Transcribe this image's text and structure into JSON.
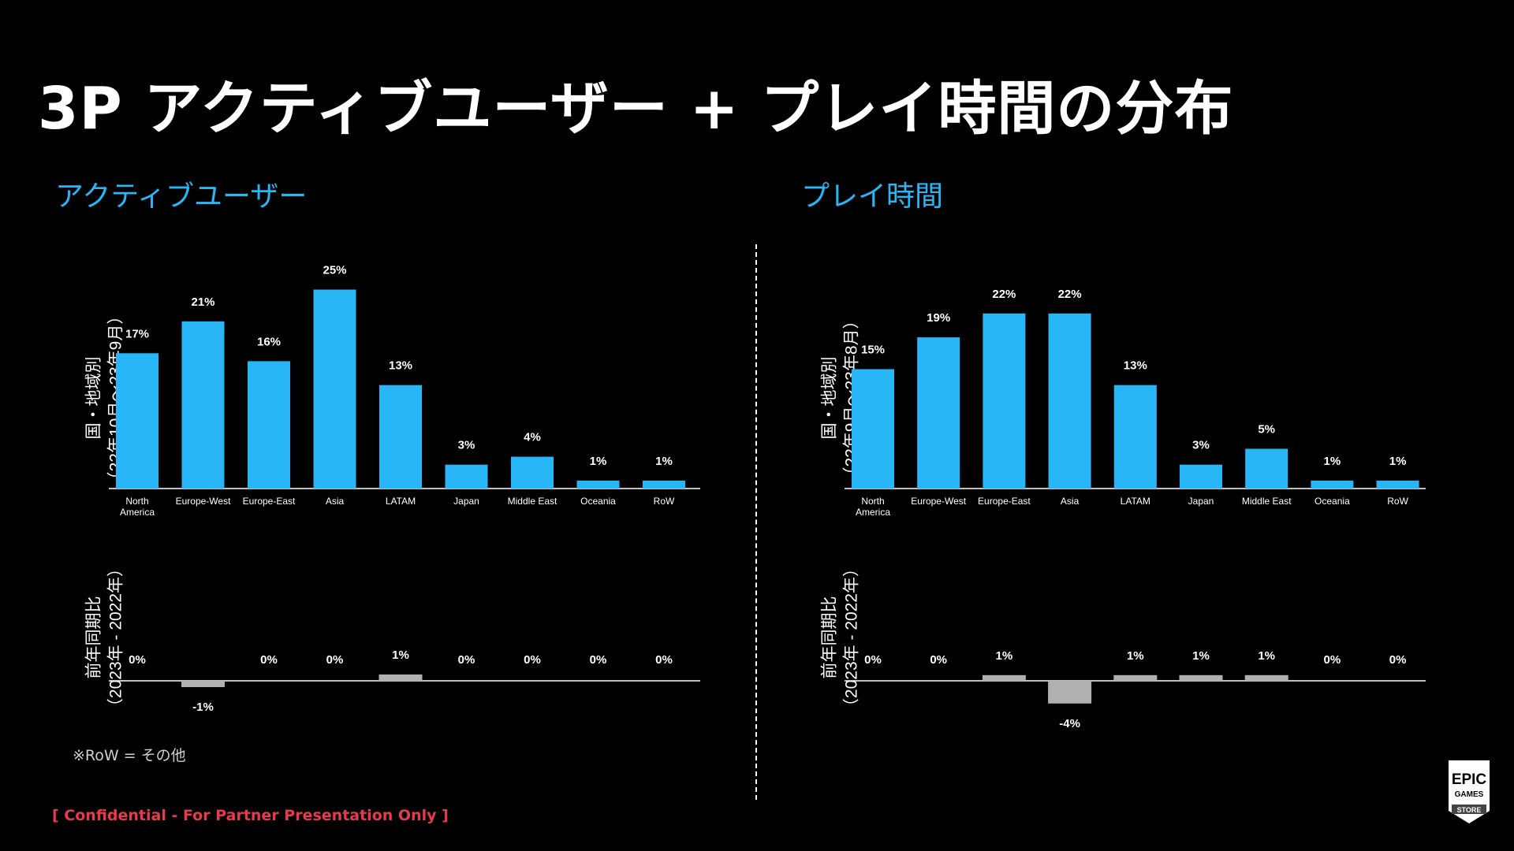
{
  "title": "3P アクティブユーザー + プレイ時間の分布",
  "footnote": "※RoW = その他",
  "confidential": "[ Confidential - For Partner Presentation Only ]",
  "logo": {
    "line1": "EPIC",
    "line2": "GAMES",
    "line3": "STORE"
  },
  "colors": {
    "accent": "#29b6f6",
    "bar": "#29b6f6",
    "yoy_bar": "#b0b0b0",
    "confidential": "#e53b4a"
  },
  "chart_data": [
    {
      "type": "bar",
      "panel_title": "アクティブユーザー",
      "ylabel_line1": "国・地域別",
      "ylabel_line2": "（22年10月〜23年9月）",
      "categories": [
        "North America",
        "Europe-West",
        "Europe-East",
        "Asia",
        "LATAM",
        "Japan",
        "Middle East",
        "Oceania",
        "RoW"
      ],
      "values": [
        17,
        21,
        16,
        25,
        13,
        3,
        4,
        1,
        1
      ],
      "labels": [
        "17%",
        "21%",
        "16%",
        "25%",
        "13%",
        "3%",
        "4%",
        "1%",
        "1%"
      ]
    },
    {
      "type": "bar",
      "panel_title": "アクティブユーザー",
      "ylabel_line1": "前年同期比",
      "ylabel_line2": "（2023年 - 2022年）",
      "categories": [
        "North America",
        "Europe-West",
        "Europe-East",
        "Asia",
        "LATAM",
        "Japan",
        "Middle East",
        "Oceania",
        "RoW"
      ],
      "values": [
        0,
        -1,
        0,
        0,
        1,
        0,
        0,
        0,
        0
      ],
      "labels": [
        "0%",
        "-1%",
        "0%",
        "0%",
        "1%",
        "0%",
        "0%",
        "0%",
        "0%"
      ]
    },
    {
      "type": "bar",
      "panel_title": "プレイ時間",
      "ylabel_line1": "国・地域別",
      "ylabel_line2": "（22年9月〜23年8月）",
      "categories": [
        "North America",
        "Europe-West",
        "Europe-East",
        "Asia",
        "LATAM",
        "Japan",
        "Middle East",
        "Oceania",
        "RoW"
      ],
      "values": [
        15,
        19,
        22,
        22,
        13,
        3,
        5,
        1,
        1
      ],
      "labels": [
        "15%",
        "19%",
        "22%",
        "22%",
        "13%",
        "3%",
        "5%",
        "1%",
        "1%"
      ]
    },
    {
      "type": "bar",
      "panel_title": "プレイ時間",
      "ylabel_line1": "前年同期比",
      "ylabel_line2": "（2023年 - 2022年）",
      "categories": [
        "North America",
        "Europe-West",
        "Europe-East",
        "Asia",
        "LATAM",
        "Japan",
        "Middle East",
        "Oceania",
        "RoW"
      ],
      "values": [
        0,
        0,
        1,
        -4,
        1,
        1,
        1,
        0,
        0
      ],
      "labels": [
        "0%",
        "0%",
        "1%",
        "-4%",
        "1%",
        "1%",
        "1%",
        "0%",
        "0%"
      ]
    }
  ]
}
